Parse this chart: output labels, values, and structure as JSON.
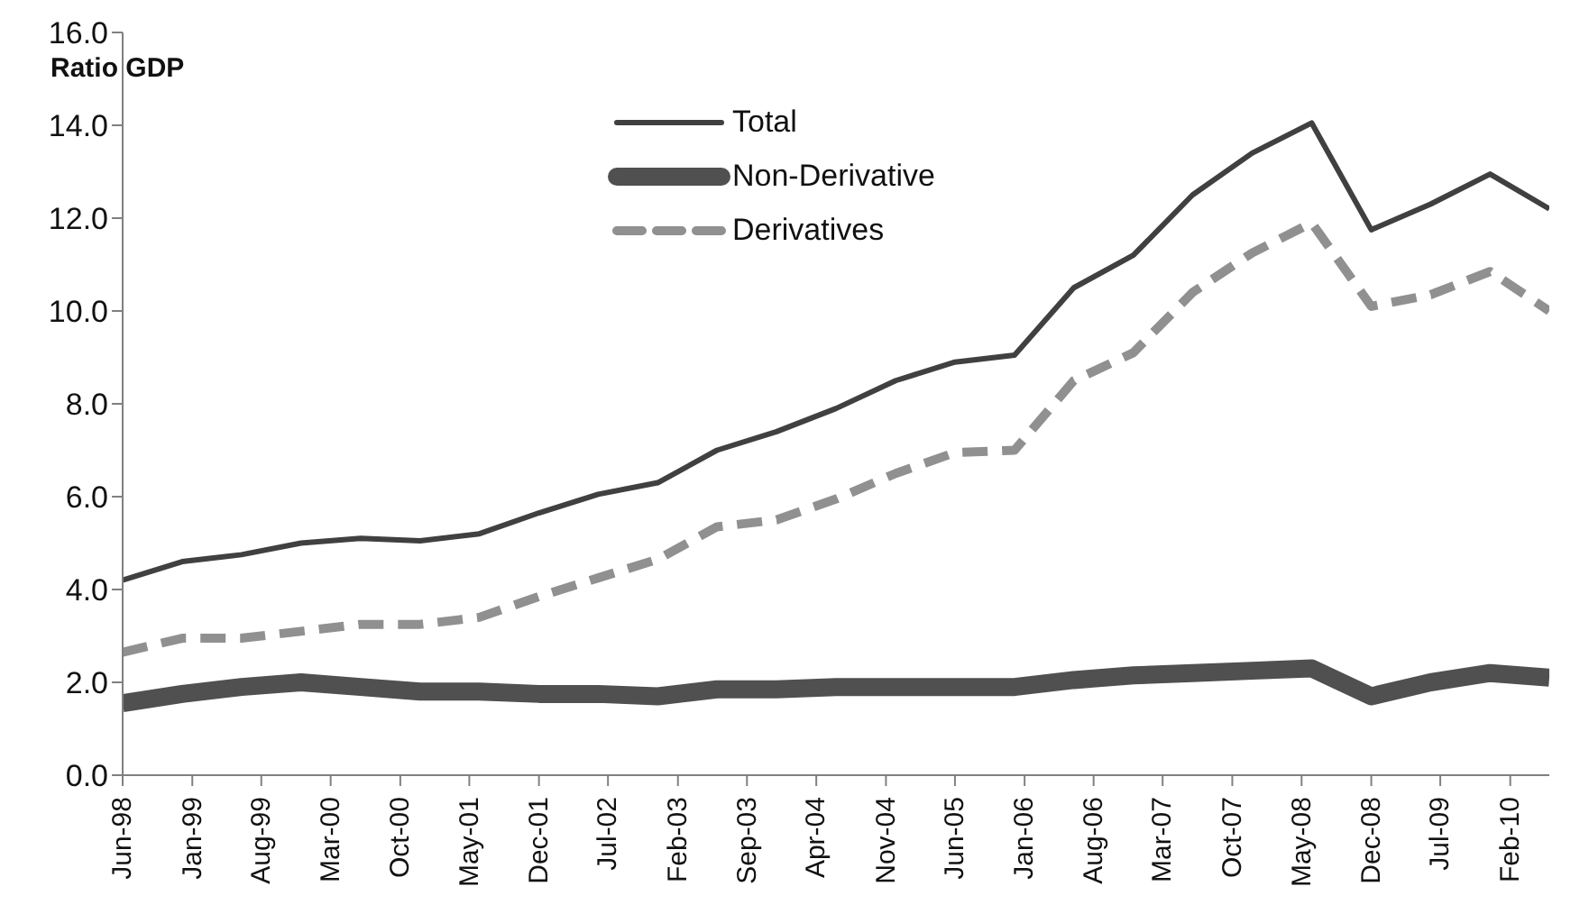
{
  "chart_data": {
    "type": "line",
    "ylabel": "Ratio GDP",
    "x": [
      "1998-06",
      "1998-12",
      "1999-06",
      "1999-12",
      "2000-06",
      "2000-12",
      "2001-06",
      "2001-12",
      "2002-06",
      "2002-12",
      "2003-06",
      "2003-12",
      "2004-06",
      "2004-12",
      "2005-06",
      "2005-12",
      "2006-06",
      "2006-12",
      "2007-06",
      "2007-12",
      "2008-06",
      "2008-12",
      "2009-06",
      "2009-12",
      "2010-06"
    ],
    "series": [
      {
        "name": "Total",
        "color": "#404040",
        "line_style": "solid",
        "values": [
          4.2,
          4.6,
          4.75,
          5.0,
          5.1,
          5.05,
          5.2,
          5.65,
          6.05,
          6.3,
          7.0,
          7.4,
          7.9,
          8.5,
          8.9,
          9.05,
          10.5,
          11.2,
          12.5,
          13.4,
          14.05,
          11.75,
          12.3,
          12.95,
          12.2
        ]
      },
      {
        "name": "Non-Derivative",
        "color": "#505050",
        "line_style": "solid",
        "values": [
          1.55,
          1.75,
          1.9,
          2.0,
          1.9,
          1.8,
          1.8,
          1.75,
          1.75,
          1.7,
          1.85,
          1.85,
          1.9,
          1.9,
          1.9,
          1.9,
          2.05,
          2.15,
          2.2,
          2.25,
          2.3,
          1.7,
          2.0,
          2.2,
          2.1
        ]
      },
      {
        "name": "Derivatives",
        "color": "#909090",
        "line_style": "dashed",
        "values": [
          2.65,
          2.95,
          2.95,
          3.1,
          3.25,
          3.25,
          3.4,
          3.85,
          4.25,
          4.65,
          5.35,
          5.5,
          5.95,
          6.5,
          6.95,
          7.0,
          8.5,
          9.1,
          10.4,
          11.25,
          11.9,
          10.1,
          10.35,
          10.85,
          10.0
        ]
      }
    ],
    "xlim": [
      "1998-06",
      "2010-06"
    ],
    "xticks": [
      {
        "value": "1998-06",
        "label": "Jun-98"
      },
      {
        "value": "1999-01",
        "label": "Jan-99"
      },
      {
        "value": "1999-08",
        "label": "Aug-99"
      },
      {
        "value": "2000-03",
        "label": "Mar-00"
      },
      {
        "value": "2000-10",
        "label": "Oct-00"
      },
      {
        "value": "2001-05",
        "label": "May-01"
      },
      {
        "value": "2001-12",
        "label": "Dec-01"
      },
      {
        "value": "2002-07",
        "label": "Jul-02"
      },
      {
        "value": "2003-02",
        "label": "Feb-03"
      },
      {
        "value": "2003-09",
        "label": "Sep-03"
      },
      {
        "value": "2004-04",
        "label": "Apr-04"
      },
      {
        "value": "2004-11",
        "label": "Nov-04"
      },
      {
        "value": "2005-06",
        "label": "Jun-05"
      },
      {
        "value": "2006-01",
        "label": "Jan-06"
      },
      {
        "value": "2006-08",
        "label": "Aug-06"
      },
      {
        "value": "2007-03",
        "label": "Mar-07"
      },
      {
        "value": "2007-10",
        "label": "Oct-07"
      },
      {
        "value": "2008-05",
        "label": "May-08"
      },
      {
        "value": "2008-12",
        "label": "Dec-08"
      },
      {
        "value": "2009-07",
        "label": "Jul-09"
      },
      {
        "value": "2010-02",
        "label": "Feb-10"
      }
    ],
    "ylim": [
      0,
      16
    ],
    "yticks": [
      {
        "value": 0,
        "label": "0.0"
      },
      {
        "value": 2,
        "label": "2.0"
      },
      {
        "value": 4,
        "label": "4.0"
      },
      {
        "value": 6,
        "label": "6.0"
      },
      {
        "value": 8,
        "label": "8.0"
      },
      {
        "value": 10,
        "label": "10.0"
      },
      {
        "value": 12,
        "label": "12.0"
      },
      {
        "value": 14,
        "label": "14.0"
      },
      {
        "value": 16,
        "label": "16.0"
      }
    ],
    "grid": false,
    "legend": "top",
    "marker": "none"
  }
}
